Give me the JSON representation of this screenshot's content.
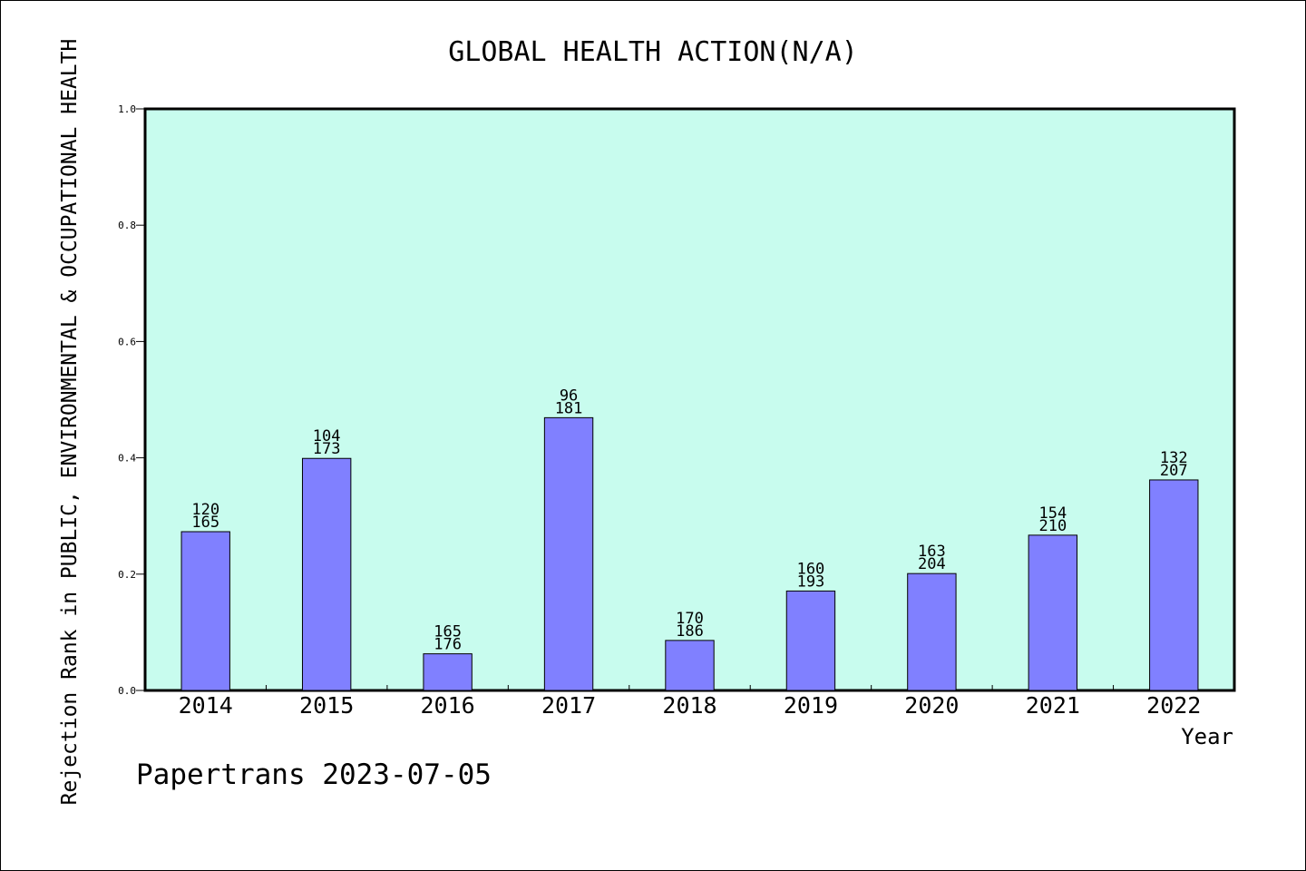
{
  "chart_data": {
    "type": "bar",
    "title": "GLOBAL HEALTH ACTION(N/A)",
    "xlabel": "Year",
    "ylabel": "Rejection Rank in PUBLIC, ENVIRONMENTAL & OCCUPATIONAL HEALTH",
    "ylim": [
      0,
      1.0
    ],
    "yticks": [
      "0.0",
      "0.2",
      "0.4",
      "0.6",
      "0.8",
      "1.0"
    ],
    "categories": [
      "2014",
      "2015",
      "2016",
      "2017",
      "2018",
      "2019",
      "2020",
      "2021",
      "2022"
    ],
    "values": [
      0.273,
      0.399,
      0.063,
      0.469,
      0.086,
      0.171,
      0.201,
      0.267,
      0.362
    ],
    "label_top": [
      "120",
      "104",
      "165",
      "96",
      "170",
      "160",
      "163",
      "154",
      "132"
    ],
    "label_bottom": [
      "165",
      "173",
      "176",
      "181",
      "186",
      "193",
      "204",
      "210",
      "207"
    ],
    "grid": false,
    "legend": "none",
    "colors": {
      "plot_background": "#c8fcee",
      "bar_fill": "#8080ff",
      "bar_stroke": "#000000"
    }
  },
  "footer": {
    "credit": "Papertrans 2023-07-05"
  }
}
